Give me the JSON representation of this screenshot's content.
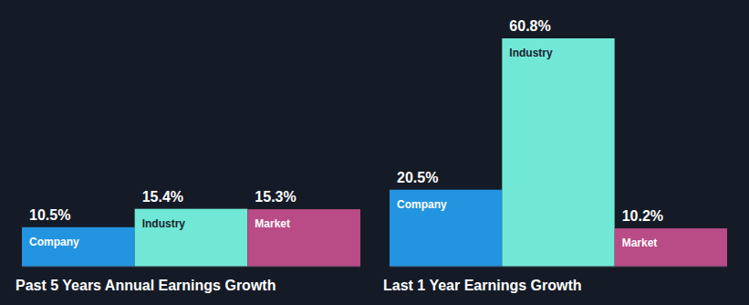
{
  "chart_data": [
    {
      "type": "bar",
      "title": "Past 5 Years Annual Earnings Growth",
      "categories": [
        "Company",
        "Industry",
        "Market"
      ],
      "values": [
        10.5,
        15.4,
        15.3
      ],
      "value_labels": [
        "10.5%",
        "15.4%",
        "15.3%"
      ],
      "colors": [
        "#2394df",
        "#71e8d6",
        "#b94b86"
      ],
      "data_labels": true,
      "tick_labels": false
    },
    {
      "type": "bar",
      "title": "Last 1 Year Earnings Growth",
      "categories": [
        "Company",
        "Industry",
        "Market"
      ],
      "values": [
        20.5,
        60.8,
        10.2
      ],
      "value_labels": [
        "20.5%",
        "60.8%",
        "10.2%"
      ],
      "colors": [
        "#2394df",
        "#71e8d6",
        "#b94b86"
      ],
      "data_labels": true,
      "tick_labels": false
    }
  ]
}
